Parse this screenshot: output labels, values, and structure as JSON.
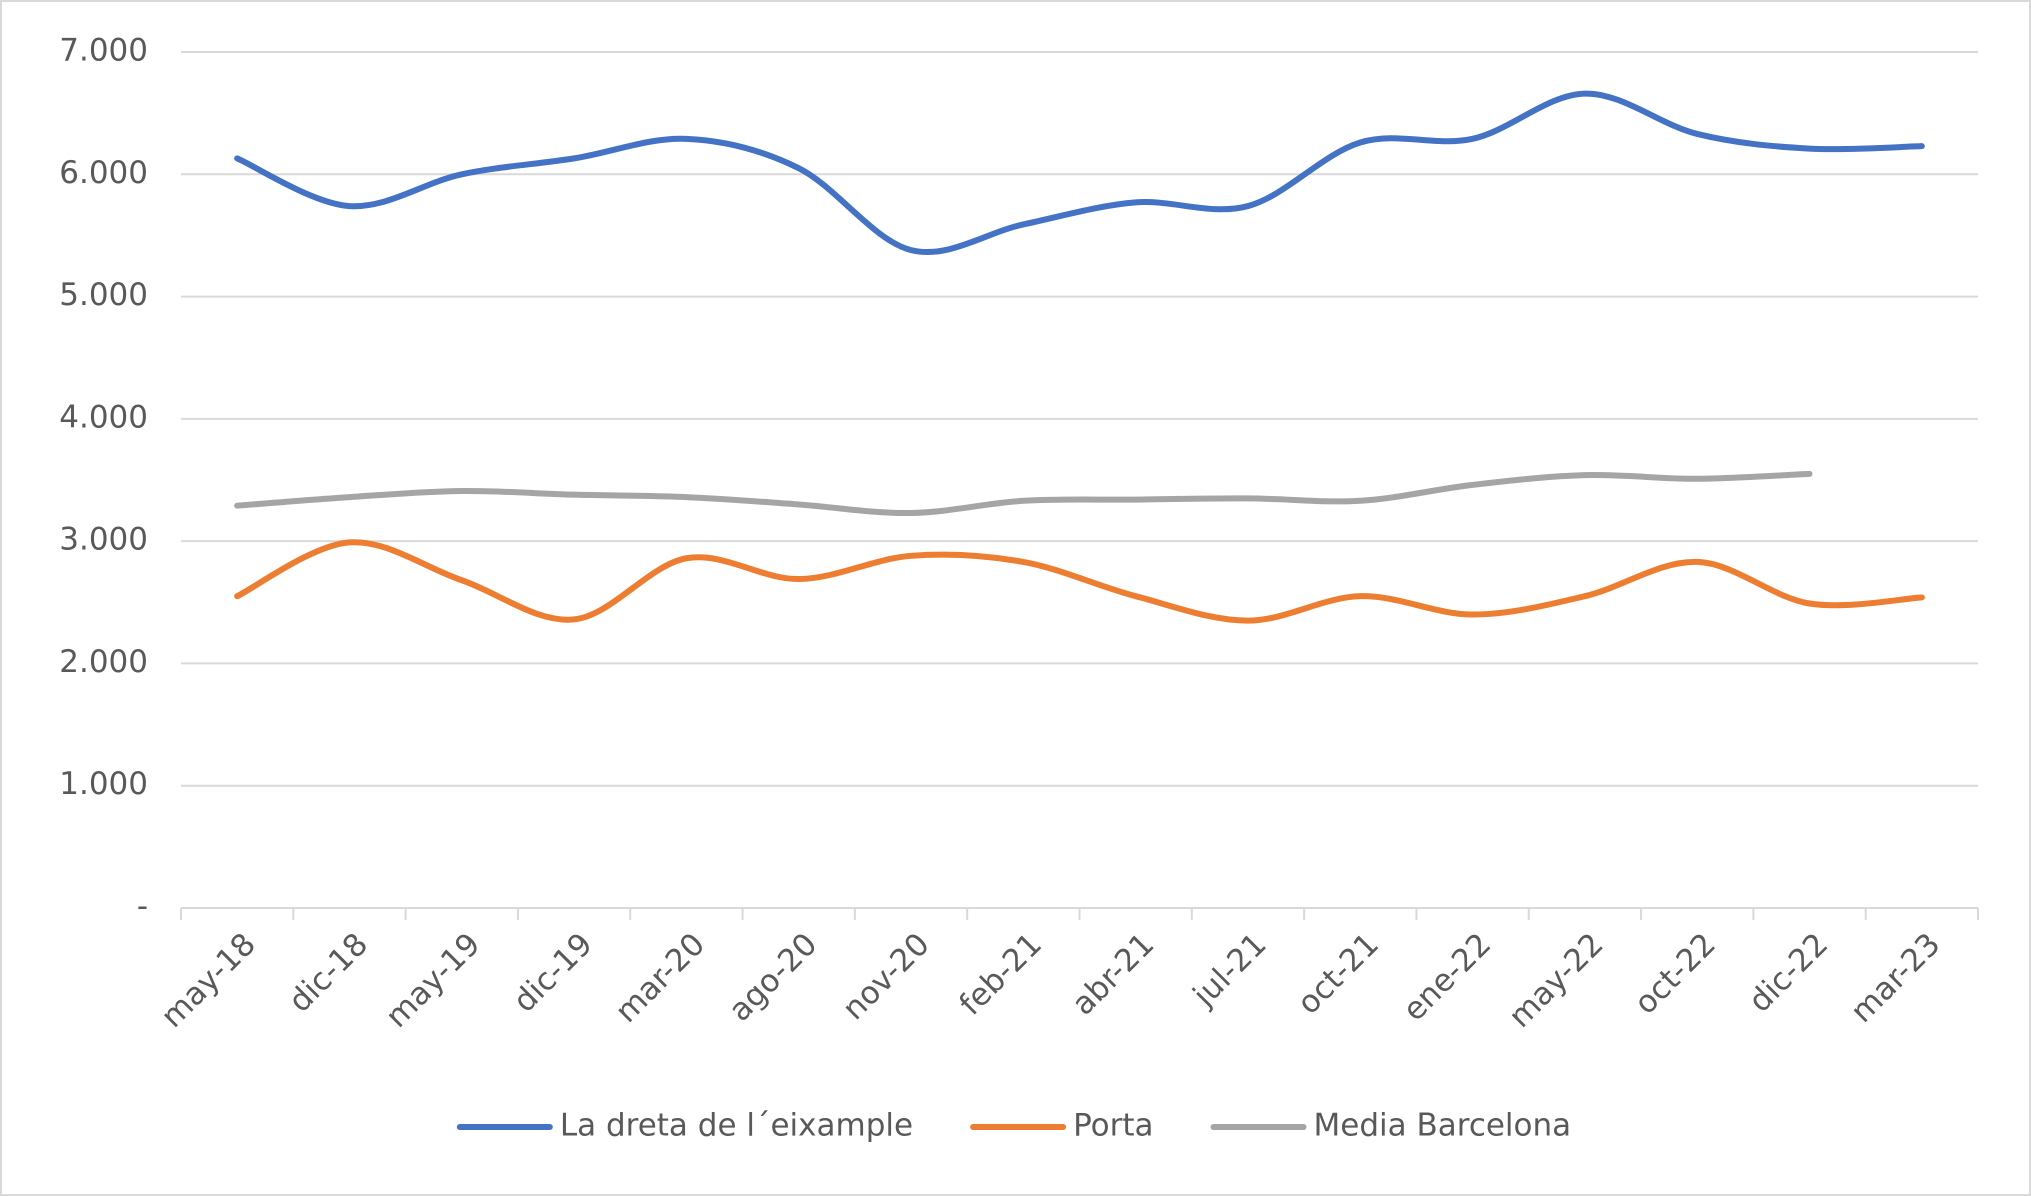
{
  "chart_data": {
    "type": "line",
    "categories": [
      "may-18",
      "dic-18",
      "may-19",
      "dic-19",
      "mar-20",
      "ago-20",
      "nov-20",
      "feb-21",
      "abr-21",
      "jul-21",
      "oct-21",
      "ene-22",
      "may-22",
      "oct-22",
      "dic-22",
      "mar-23"
    ],
    "series": [
      {
        "name": "La dreta de l´eixample",
        "color": "#4472c4",
        "values": [
          6130,
          5740,
          6000,
          6130,
          6290,
          6050,
          5380,
          5590,
          5770,
          5740,
          6260,
          6290,
          6660,
          6330,
          6210,
          6230
        ]
      },
      {
        "name": "Porta",
        "color": "#ed7d31",
        "values": [
          2550,
          2990,
          2680,
          2360,
          2860,
          2690,
          2880,
          2830,
          2550,
          2350,
          2550,
          2400,
          2550,
          2830,
          2490,
          2540
        ]
      },
      {
        "name": "Media Barcelona",
        "color": "#a5a5a5",
        "values": [
          3290,
          3360,
          3410,
          3380,
          3360,
          3300,
          3230,
          3330,
          3340,
          3350,
          3330,
          3460,
          3540,
          3510,
          3550,
          null
        ]
      }
    ],
    "ylim": [
      0,
      7000
    ],
    "yticks": [
      {
        "value": 0,
        "label": "-"
      },
      {
        "value": 1000,
        "label": "1.000"
      },
      {
        "value": 2000,
        "label": "2.000"
      },
      {
        "value": 3000,
        "label": "3.000"
      },
      {
        "value": 4000,
        "label": "4.000"
      },
      {
        "value": 5000,
        "label": "5.000"
      },
      {
        "value": 6000,
        "label": "6.000"
      },
      {
        "value": 7000,
        "label": "7.000"
      }
    ],
    "grid": true,
    "legend": "bottom"
  }
}
